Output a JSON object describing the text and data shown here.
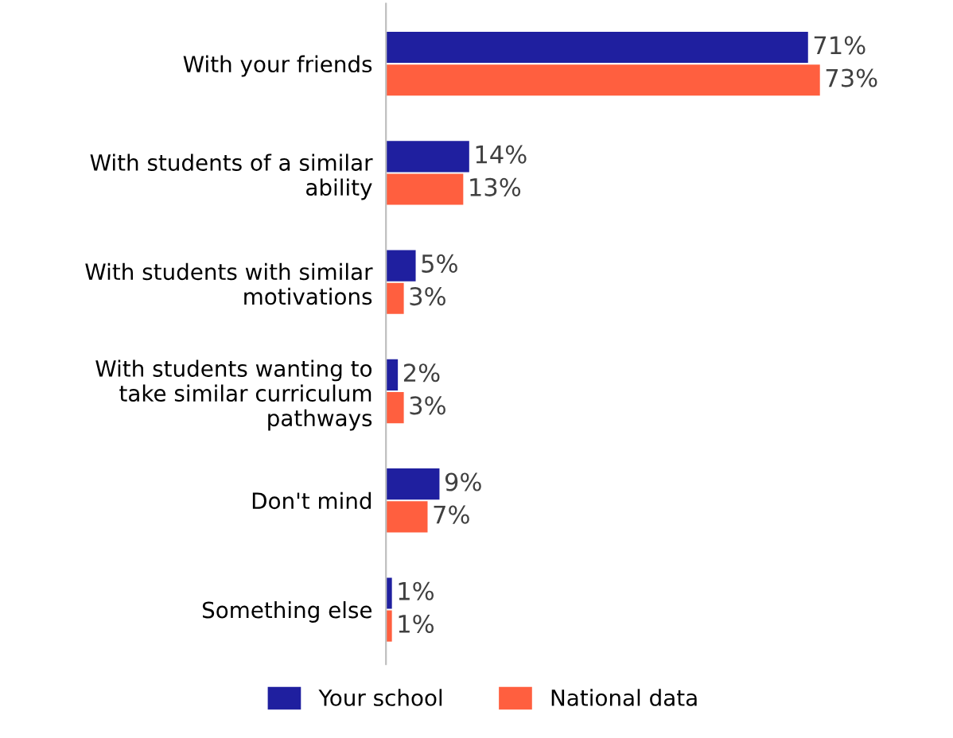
{
  "chart_data": {
    "type": "bar",
    "orientation": "horizontal",
    "categories": [
      "With your friends",
      "With students of a similar\nability",
      "With students with similar\nmotivations",
      "With students wanting to\ntake similar curriculum\npathways",
      "Don't mind",
      "Something else"
    ],
    "series": [
      {
        "name": "Your school",
        "color": "#1f1f9f",
        "values": [
          71,
          14,
          5,
          2,
          9,
          1
        ],
        "value_labels": [
          "71%",
          "14%",
          "5%",
          "2%",
          "9%",
          "1%"
        ]
      },
      {
        "name": "National data",
        "color": "#ff5f3f",
        "values": [
          73,
          13,
          3,
          3,
          7,
          1
        ],
        "value_labels": [
          "73%",
          "13%",
          "3%",
          "3%",
          "7%",
          "1%"
        ]
      }
    ],
    "legend": "bottom",
    "grid": false
  }
}
